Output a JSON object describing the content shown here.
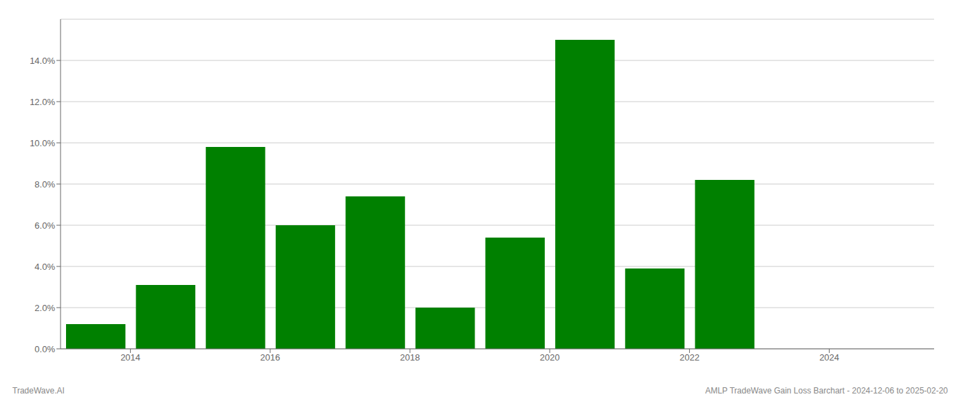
{
  "chart_data": {
    "type": "bar",
    "x": [
      2013,
      2014,
      2015,
      2016,
      2017,
      2018,
      2019,
      2020,
      2021,
      2022,
      2023,
      2024
    ],
    "values": [
      0.012,
      0.031,
      0.098,
      0.06,
      0.074,
      0.02,
      0.054,
      0.15,
      0.039,
      0.082,
      0.0,
      0.0
    ],
    "color": "#008000",
    "xlim": [
      2012.5,
      2025.0
    ],
    "xticks": [
      {
        "value": 2013.5,
        "label": "2014"
      },
      {
        "value": 2015.5,
        "label": "2016"
      },
      {
        "value": 2017.5,
        "label": "2018"
      },
      {
        "value": 2019.5,
        "label": "2020"
      },
      {
        "value": 2021.5,
        "label": "2022"
      },
      {
        "value": 2023.5,
        "label": "2024"
      }
    ],
    "ylim": [
      0,
      0.16
    ],
    "yticks": [
      {
        "value": 0.0,
        "label": "0.0%"
      },
      {
        "value": 0.02,
        "label": "2.0%"
      },
      {
        "value": 0.04,
        "label": "4.0%"
      },
      {
        "value": 0.06,
        "label": "6.0%"
      },
      {
        "value": 0.08,
        "label": "8.0%"
      },
      {
        "value": 0.1,
        "label": "10.0%"
      },
      {
        "value": 0.12,
        "label": "12.0%"
      },
      {
        "value": 0.14,
        "label": "14.0%"
      }
    ],
    "grid": true,
    "annotations": [
      "TradeWave.AI",
      "AMLP TradeWave Gain Loss Barchart - 2024-12-06 to 2025-02-20"
    ]
  }
}
